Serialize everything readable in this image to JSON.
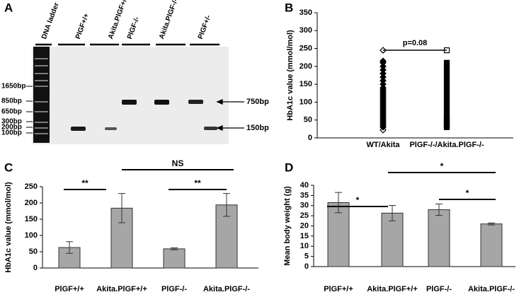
{
  "gel": {
    "panel": "A",
    "lanes": [
      "DNA ladder",
      "PlGF+/+",
      "Akita.PlGF+/+",
      "PlGF-/-",
      "Akita.PlGF-/-",
      "PlGF+/-"
    ],
    "sizes": [
      "1650bp",
      "850bp",
      "650bp",
      "300bp",
      "200bp",
      "100bp"
    ],
    "bands": [
      "750bp",
      "150bp"
    ]
  },
  "chart_data": [
    {
      "type": "strip",
      "panel": "B",
      "ylabel": "HbA1c value  (mmol/mol)",
      "annotation": "p=0.08",
      "categories": [
        "WT/Akita",
        "PlGF-/-/Akita.PlGF-/-"
      ],
      "series": [
        {
          "values": [
            22,
            30,
            35,
            40,
            45,
            50,
            55,
            60,
            65,
            70,
            75,
            80,
            85,
            90,
            95,
            100,
            105,
            110,
            115,
            120,
            125,
            130,
            135,
            140,
            150,
            160,
            170,
            180,
            190,
            200,
            210,
            215,
            245
          ]
        },
        {
          "values": [
            30,
            35,
            40,
            45,
            50,
            55,
            60,
            70,
            80,
            90,
            100,
            110,
            120,
            130,
            140,
            150,
            160,
            170,
            180,
            190,
            200,
            210,
            245
          ]
        }
      ],
      "ylim": [
        0,
        350
      ],
      "yticks": [
        0,
        50,
        100,
        150,
        200,
        250,
        300,
        350
      ]
    },
    {
      "type": "bar",
      "panel": "C",
      "ylabel": "HbA1c value (mmol/mol)",
      "categories": [
        "PlGF+/+",
        "Akita.PlGF+/+",
        "PlGF-/-",
        "Akita.PlGF-/-"
      ],
      "values": [
        63,
        184,
        59,
        194
      ],
      "errors": [
        18,
        45,
        3,
        35
      ],
      "color": "#a6a6a6",
      "ylim": [
        0,
        250
      ],
      "yticks": [
        0,
        50,
        100,
        150,
        200,
        250
      ],
      "annotations": [
        "**",
        "NS",
        "**"
      ]
    },
    {
      "type": "bar",
      "panel": "D",
      "ylabel": "Mean body weight (g)",
      "categories": [
        "PlGF+/+",
        "Akita.PlGF+/+",
        "PlGF-/-",
        "Akita.PlGF-/-"
      ],
      "values": [
        31.5,
        26.3,
        28,
        21
      ],
      "errors": [
        5,
        3.8,
        2.8,
        0.5
      ],
      "color": "#a6a6a6",
      "ylim": [
        0,
        40
      ],
      "yticks": [
        0,
        5,
        10,
        15,
        20,
        25,
        30,
        35,
        40
      ],
      "annotations": [
        "*",
        "*",
        "*"
      ]
    }
  ]
}
